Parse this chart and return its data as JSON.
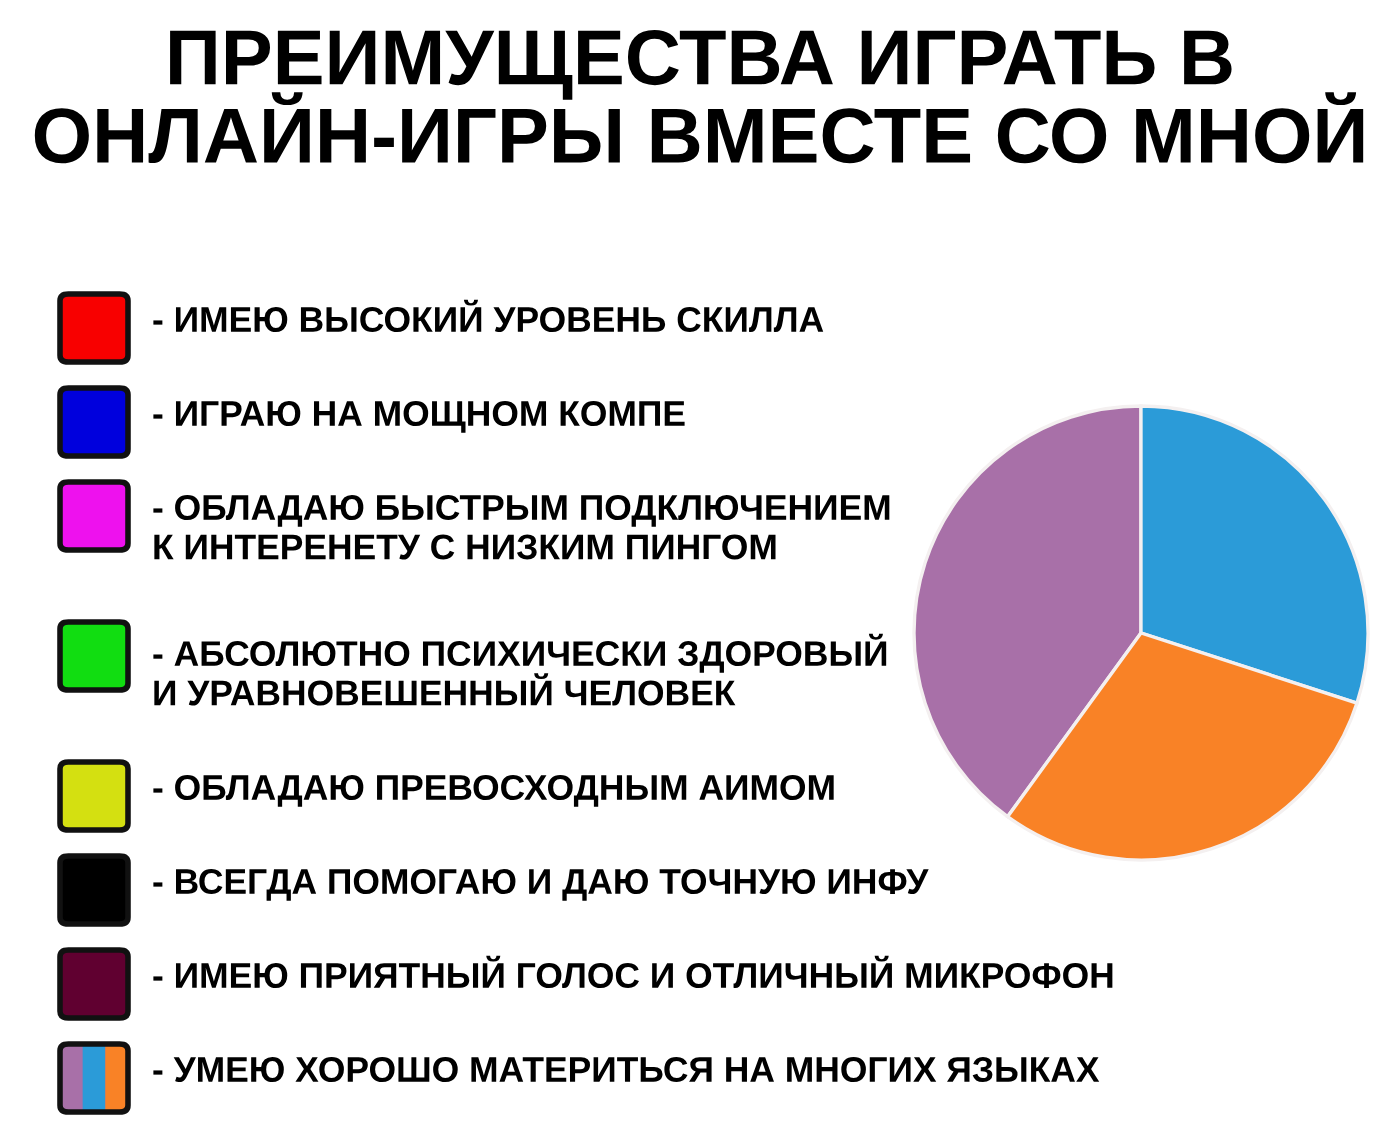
{
  "chart_data": {
    "type": "pie",
    "title": "ПРЕИМУЩЕСТВА ИГРАТЬ В\nОНЛАЙН-ИГРЫ ВМЕСТЕ СО МНОЙ",
    "categories": [
      "- ИМЕЮ ВЫСОКИЙ УРОВЕНЬ СКИЛЛА",
      "- ИГРАЮ НА МОЩНОМ КОМПЕ",
      "- ОБЛАДАЮ БЫСТРЫМ ПОДКЛЮЧЕНИЕМ\nК ИНТЕРЕНЕТУ С НИЗКИМ ПИНГОМ",
      "- АБСОЛЮТНО ПСИХИЧЕСКИ ЗДОРОВЫЙ\nИ УРАВНОВЕШЕННЫЙ ЧЕЛОВЕК",
      "- ОБЛАДАЮ ПРЕВОСХОДНЫМ АИМОМ",
      "- ВСЕГДА ПОМОГАЮ И ДАЮ ТОЧНУЮ ИНФУ",
      "- ИМЕЮ ПРИЯТНЫЙ ГОЛОС И ОТЛИЧНЫЙ МИКРОФОН",
      "- УМЕЮ ХОРОШО МАТЕРИТЬСЯ НА МНОГИХ ЯЗЫКАХ",
      null,
      null
    ],
    "values": [
      0,
      0,
      0,
      0,
      0,
      0,
      0,
      40,
      30,
      30
    ],
    "colors": [
      "#f80000",
      "#0000dd",
      "#ee11ee",
      "#11dd11",
      "#d4e011",
      "#000000",
      "#600030",
      "#a870a8",
      "#2b9bd8",
      "#f98226"
    ],
    "legend": "left"
  }
}
